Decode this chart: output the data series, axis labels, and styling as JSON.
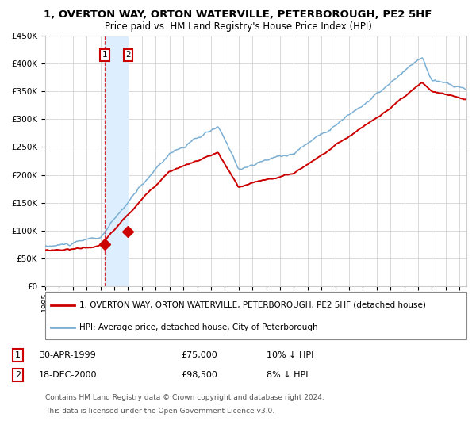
{
  "title": "1, OVERTON WAY, ORTON WATERVILLE, PETERBOROUGH, PE2 5HF",
  "subtitle": "Price paid vs. HM Land Registry's House Price Index (HPI)",
  "yticks": [
    0,
    50000,
    100000,
    150000,
    200000,
    250000,
    300000,
    350000,
    400000,
    450000
  ],
  "ytick_labels": [
    "£0",
    "£50K",
    "£100K",
    "£150K",
    "£200K",
    "£250K",
    "£300K",
    "£350K",
    "£400K",
    "£450K"
  ],
  "xmin": 1995.0,
  "xmax": 2025.5,
  "ymin": 0,
  "ymax": 450000,
  "hpi_color": "#7bafd4",
  "price_color": "#cc0000",
  "marker_color": "#cc0000",
  "vline_color": "#cc0000",
  "vspan_color": "#ddeeff",
  "transaction1_x": 1999.33,
  "transaction1_y": 75000,
  "transaction2_x": 2001.0,
  "transaction2_y": 98500,
  "legend1": "1, OVERTON WAY, ORTON WATERVILLE, PETERBOROUGH, PE2 5HF (detached house)",
  "legend2": "HPI: Average price, detached house, City of Peterborough",
  "table_row1_num": "1",
  "table_row1_date": "30-APR-1999",
  "table_row1_price": "£75,000",
  "table_row1_hpi": "10% ↓ HPI",
  "table_row2_num": "2",
  "table_row2_date": "18-DEC-2000",
  "table_row2_price": "£98,500",
  "table_row2_hpi": "8% ↓ HPI",
  "footnote_line1": "Contains HM Land Registry data © Crown copyright and database right 2024.",
  "footnote_line2": "This data is licensed under the Open Government Licence v3.0.",
  "grid_color": "#cccccc",
  "bg_color": "#ffffff",
  "label1_text": "1",
  "label2_text": "2"
}
